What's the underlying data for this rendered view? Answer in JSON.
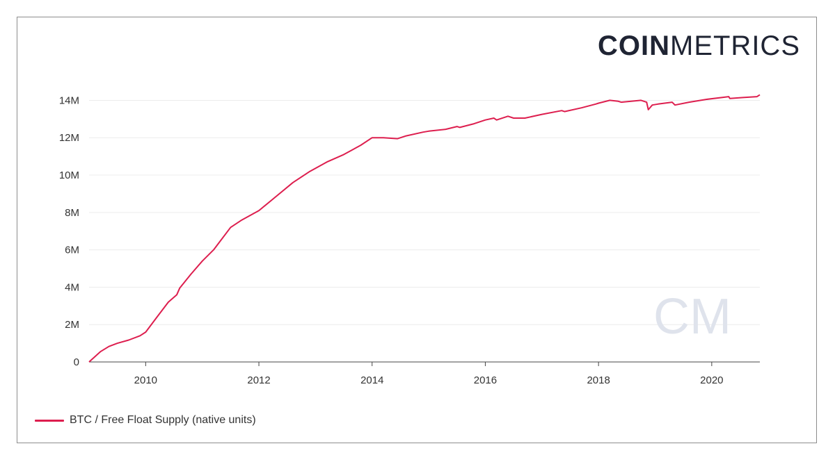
{
  "brand": {
    "bold": "COIN",
    "light": "METRICS",
    "watermark": "CM"
  },
  "legend": {
    "label": "BTC / Free Float Supply (native units)",
    "color": "#dd1e4e"
  },
  "chart_data": {
    "type": "line",
    "title": "",
    "xlabel": "",
    "ylabel": "",
    "xlim": [
      2009.0,
      2020.85
    ],
    "ylim": [
      0,
      14500000
    ],
    "x_ticks": [
      2010,
      2012,
      2014,
      2016,
      2018,
      2020
    ],
    "x_tick_labels": [
      "2010",
      "2012",
      "2014",
      "2016",
      "2018",
      "2020"
    ],
    "y_ticks": [
      0,
      2000000,
      4000000,
      6000000,
      8000000,
      10000000,
      12000000,
      14000000
    ],
    "y_tick_labels": [
      "0",
      "2M",
      "4M",
      "6M",
      "8M",
      "10M",
      "12M",
      "14M"
    ],
    "grid": "horizontal",
    "legend_position": "bottom-left",
    "series": [
      {
        "name": "BTC / Free Float Supply (native units)",
        "color": "#dd1e4e",
        "x": [
          2009.0,
          2009.2,
          2009.35,
          2009.5,
          2009.7,
          2009.9,
          2010.0,
          2010.2,
          2010.4,
          2010.55,
          2010.6,
          2010.8,
          2011.0,
          2011.2,
          2011.3,
          2011.5,
          2011.7,
          2012.0,
          2012.3,
          2012.6,
          2012.9,
          2013.2,
          2013.5,
          2013.8,
          2014.0,
          2014.2,
          2014.45,
          2014.6,
          2014.9,
          2015.0,
          2015.3,
          2015.5,
          2015.55,
          2015.8,
          2016.0,
          2016.15,
          2016.2,
          2016.4,
          2016.5,
          2016.7,
          2017.0,
          2017.35,
          2017.4,
          2017.7,
          2017.95,
          2018.0,
          2018.2,
          2018.35,
          2018.4,
          2018.75,
          2018.85,
          2018.88,
          2018.95,
          2019.05,
          2019.3,
          2019.35,
          2019.6,
          2019.9,
          2020.3,
          2020.32,
          2020.55,
          2020.8,
          2020.85
        ],
        "values": [
          0,
          550000,
          830000,
          1000000,
          1170000,
          1400000,
          1600000,
          2400000,
          3200000,
          3600000,
          3950000,
          4700000,
          5400000,
          6000000,
          6400000,
          7200000,
          7600000,
          8100000,
          8850000,
          9600000,
          10200000,
          10700000,
          11100000,
          11600000,
          12000000,
          12000000,
          11950000,
          12100000,
          12300000,
          12350000,
          12450000,
          12600000,
          12550000,
          12750000,
          12950000,
          13050000,
          12950000,
          13150000,
          13050000,
          13050000,
          13250000,
          13450000,
          13400000,
          13600000,
          13800000,
          13850000,
          14000000,
          13950000,
          13900000,
          14000000,
          13900000,
          13500000,
          13750000,
          13800000,
          13900000,
          13750000,
          13900000,
          14050000,
          14200000,
          14100000,
          14150000,
          14200000,
          14300000
        ]
      }
    ]
  }
}
